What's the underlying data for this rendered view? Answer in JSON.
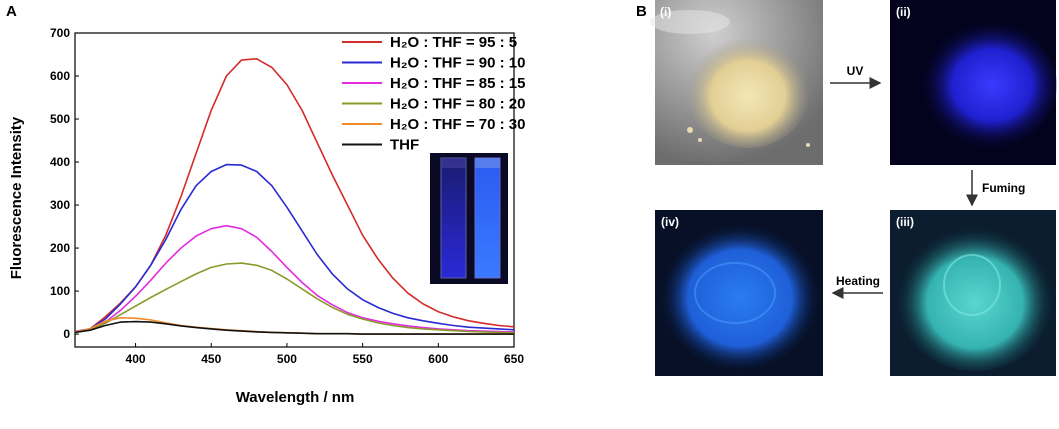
{
  "panel_a_label": "A",
  "panel_b_label": "B",
  "chart_data": {
    "type": "line",
    "xlabel": "Wavelength / nm",
    "ylabel": "Fluorescence Intensity",
    "xlim": [
      360,
      650
    ],
    "ylim": [
      -30,
      700
    ],
    "xticks": [
      400,
      450,
      500,
      550,
      600,
      650
    ],
    "yticks": [
      0,
      100,
      200,
      300,
      400,
      500,
      600,
      700
    ],
    "grid": false,
    "legend_position": "top-right",
    "x": [
      360,
      370,
      380,
      390,
      400,
      410,
      420,
      430,
      440,
      450,
      460,
      470,
      480,
      490,
      500,
      510,
      520,
      530,
      540,
      550,
      560,
      570,
      580,
      590,
      600,
      610,
      620,
      630,
      640,
      650
    ],
    "series": [
      {
        "name": "H₂O : THF = 95 : 5",
        "color": "#d42a2a",
        "values": [
          6,
          12,
          40,
          72,
          110,
          160,
          230,
          320,
          420,
          520,
          600,
          637,
          640,
          620,
          580,
          520,
          445,
          370,
          300,
          230,
          175,
          130,
          95,
          70,
          52,
          40,
          31,
          25,
          20,
          17
        ]
      },
      {
        "name": "H₂O : THF = 90 : 10",
        "color": "#2a2ad2",
        "values": [
          6,
          12,
          35,
          70,
          110,
          160,
          220,
          290,
          345,
          378,
          394,
          393,
          378,
          345,
          295,
          240,
          185,
          140,
          105,
          80,
          62,
          48,
          38,
          31,
          25,
          20,
          16,
          14,
          12,
          10
        ]
      },
      {
        "name": "H₂O : THF = 85 : 15",
        "color": "#e32be0",
        "values": [
          6,
          11,
          28,
          55,
          88,
          125,
          165,
          200,
          228,
          245,
          252,
          245,
          225,
          192,
          155,
          120,
          90,
          68,
          50,
          38,
          30,
          24,
          19,
          15,
          12,
          10,
          8,
          7,
          6,
          5
        ]
      },
      {
        "name": "H₂O : THF = 80 : 20",
        "color": "#8a9a2a",
        "values": [
          5,
          10,
          25,
          45,
          65,
          85,
          104,
          122,
          140,
          155,
          163,
          165,
          160,
          148,
          128,
          105,
          82,
          62,
          46,
          35,
          26,
          20,
          15,
          12,
          10,
          8,
          6,
          5,
          4,
          3
        ]
      },
      {
        "name": "H₂O : THF = 70 : 30",
        "color": "#f08c2a",
        "values": [
          5,
          12,
          30,
          38,
          37,
          33,
          26,
          20,
          16,
          13,
          10,
          8,
          6,
          4,
          3,
          2,
          1,
          1,
          1,
          0,
          0,
          0,
          0,
          0,
          0,
          0,
          0,
          0,
          0,
          0
        ]
      },
      {
        "name": "THF",
        "color": "#111111",
        "values": [
          4,
          9,
          20,
          28,
          29,
          28,
          24,
          19,
          15,
          12,
          9,
          7,
          5,
          4,
          3,
          2,
          1,
          1,
          1,
          0,
          0,
          0,
          0,
          0,
          0,
          0,
          0,
          0,
          0,
          0
        ]
      }
    ]
  },
  "photos": [
    {
      "label": "(i)"
    },
    {
      "label": "(ii)"
    },
    {
      "label": "(iii)"
    },
    {
      "label": "(iv)"
    }
  ],
  "arrows": {
    "uv": "UV",
    "fuming": "Fuming",
    "heating": "Heating"
  }
}
